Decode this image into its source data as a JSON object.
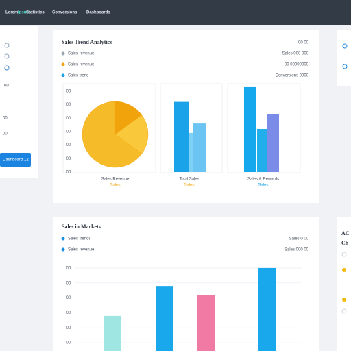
{
  "nav": {
    "brand": "Lorem",
    "brand_accent": "Ipsum",
    "items": [
      "Statistics",
      "Conversions",
      "Dashboards"
    ]
  },
  "sidebar": {
    "labels": [
      "00",
      "00",
      "00"
    ],
    "button": "Dashboard 12"
  },
  "sales_panel": {
    "title": "Sales Trend Analytics",
    "legend": [
      {
        "name": "Sales revenue",
        "color": "#9aa5b1"
      },
      {
        "name": "Sales revenue",
        "color": "#f0a30a"
      },
      {
        "name": "Sales trend",
        "color": "#1aa3e8"
      }
    ],
    "stats": [
      "00 00",
      "Sales 000 000",
      "00 00000000",
      "Conversions 0000"
    ],
    "ylim": [
      0,
      6.5
    ],
    "yticks": [
      {
        "value": 0,
        "label": "00"
      },
      {
        "value": 1,
        "label": "00"
      },
      {
        "value": 2,
        "label": "00"
      },
      {
        "value": 3,
        "label": "00"
      },
      {
        "value": 4,
        "label": "00"
      },
      {
        "value": 5,
        "label": "00"
      },
      {
        "value": 6,
        "label": "00"
      }
    ],
    "pie": {
      "values": [
        15,
        20,
        65
      ],
      "colors": [
        "#f0a30a",
        "#f9c93b",
        "#f6bb28"
      ],
      "caption": "Sales Revenue",
      "sub": "Sales",
      "sub_color": "#f0a30a"
    },
    "bars_a": {
      "values": [
        5.2,
        2.9,
        3.6
      ],
      "colors": [
        "#1aa3e8",
        "#7fd0f5",
        "#6cc4f2"
      ],
      "caption": "Total Sales",
      "sub": "Sales",
      "sub_color": "#f0a30a"
    },
    "bars_b": {
      "values": [
        6.3,
        3.2,
        4.3
      ],
      "colors": [
        "#15a8ec",
        "#21aeea",
        "#7b8be8"
      ],
      "caption": "Sales & Rewards",
      "sub": "Sales",
      "sub_color": "#1aa3e8"
    }
  },
  "market_panel": {
    "title": "Sales in Markets",
    "legend": [
      {
        "name": "Sales trends",
        "color": "#1a8fe0"
      },
      {
        "name": "Sales revenue",
        "color": "#1a8fe0"
      }
    ],
    "stats": [
      "Sales 0 00",
      "Sales 000 00"
    ],
    "ylim": [
      0,
      6.5
    ],
    "yticks": [
      {
        "value": 1,
        "label": "00"
      },
      {
        "value": 2,
        "label": "00"
      },
      {
        "value": 3,
        "label": "00"
      },
      {
        "value": 4,
        "label": "00"
      },
      {
        "value": 5,
        "label": "00"
      },
      {
        "value": 6,
        "label": "00"
      }
    ],
    "values": [
      2.8,
      4.8,
      4.2,
      6.0
    ],
    "colors": [
      "#9fe6e2",
      "#1aa8ec",
      "#f07aa4",
      "#1aa8ec"
    ]
  },
  "side_panel": {
    "labels": [
      "AC",
      "Ch"
    ]
  }
}
